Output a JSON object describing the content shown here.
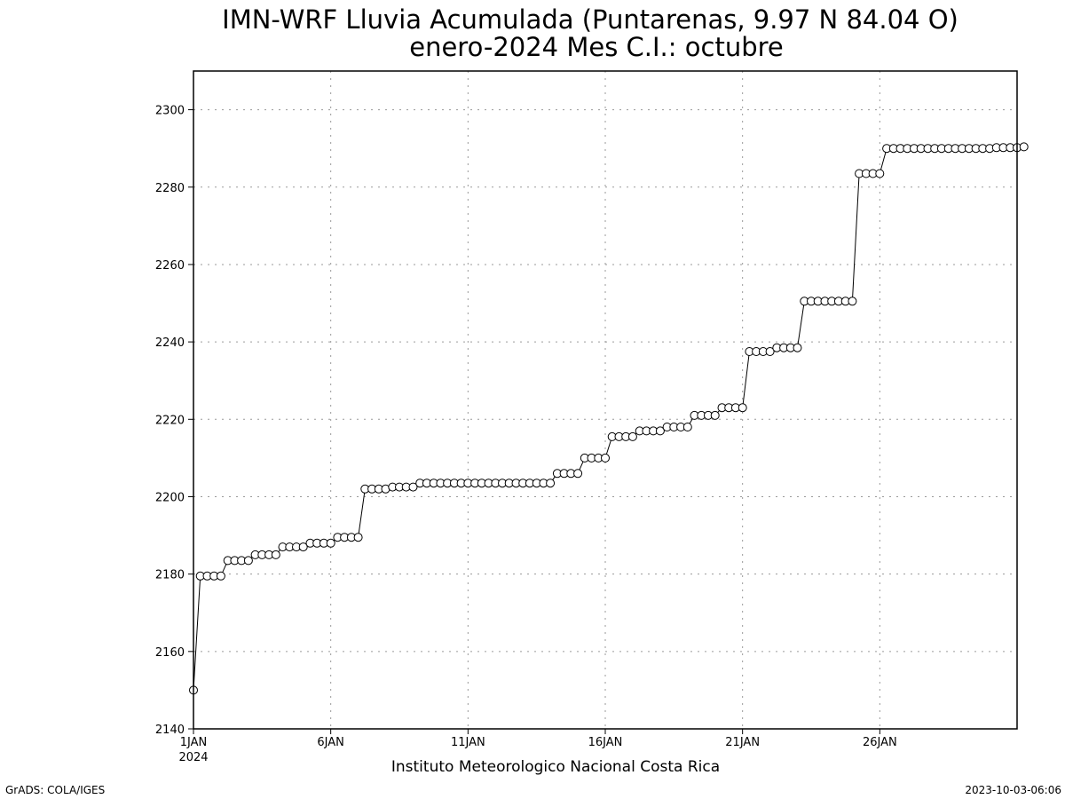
{
  "page": {
    "footer_left": "GrADS: COLA/IGES",
    "footer_right": "2023-10-03-06:06"
  },
  "chart_data": {
    "type": "line",
    "title": "IMN-WRF  Lluvia Acumulada  (Puntarenas, 9.97  N 84.04  O)",
    "subtitle": "enero-2024 Mes C.I.: octubre",
    "xlabel": "Instituto Meteorologico Nacional Costa Rica",
    "ylabel": "",
    "xlim": [
      1,
      31
    ],
    "ylim": [
      2140,
      2310
    ],
    "grid": true,
    "marker": "open-circle",
    "colors": {
      "line": "#000000",
      "marker_fill": "#ffffff",
      "grid": "#9a9a9a"
    },
    "x_ticks": [
      {
        "value": 1,
        "label": "1JAN",
        "sublabel": "2024"
      },
      {
        "value": 6,
        "label": "6JAN"
      },
      {
        "value": 11,
        "label": "11JAN"
      },
      {
        "value": 16,
        "label": "16JAN"
      },
      {
        "value": 21,
        "label": "21JAN"
      },
      {
        "value": 26,
        "label": "26JAN"
      }
    ],
    "y_ticks": [
      2140,
      2160,
      2180,
      2200,
      2220,
      2240,
      2260,
      2280,
      2300
    ],
    "series": [
      {
        "step_days": 0.25,
        "x_start": 1,
        "values": [
          2150,
          2179.5,
          2179.5,
          2179.5,
          2179.5,
          2183.5,
          2183.5,
          2183.5,
          2183.5,
          2185,
          2185,
          2185,
          2185,
          2187,
          2187,
          2187,
          2187,
          2188,
          2188,
          2188,
          2188,
          2189.5,
          2189.5,
          2189.5,
          2189.5,
          2202,
          2202,
          2202,
          2202,
          2202.5,
          2202.5,
          2202.5,
          2202.5,
          2203.5,
          2203.5,
          2203.5,
          2203.5,
          2203.5,
          2203.5,
          2203.5,
          2203.5,
          2203.5,
          2203.5,
          2203.5,
          2203.5,
          2203.5,
          2203.5,
          2203.5,
          2203.5,
          2203.5,
          2203.5,
          2203.5,
          2203.5,
          2206,
          2206,
          2206,
          2206,
          2210,
          2210,
          2210,
          2210,
          2215.5,
          2215.5,
          2215.5,
          2215.5,
          2217,
          2217,
          2217,
          2217,
          2218,
          2218,
          2218,
          2218,
          2221,
          2221,
          2221,
          2221,
          2223,
          2223,
          2223,
          2223,
          2237.5,
          2237.5,
          2237.5,
          2237.5,
          2238.5,
          2238.5,
          2238.5,
          2238.5,
          2250.5,
          2250.5,
          2250.5,
          2250.5,
          2250.5,
          2250.5,
          2250.5,
          2250.5,
          2283.5,
          2283.5,
          2283.5,
          2283.5,
          2290,
          2290,
          2290,
          2290,
          2290,
          2290,
          2290,
          2290,
          2290,
          2290,
          2290,
          2290,
          2290,
          2290,
          2290,
          2290,
          2290.2,
          2290.2,
          2290.2,
          2290.2,
          2290.4
        ]
      }
    ]
  }
}
